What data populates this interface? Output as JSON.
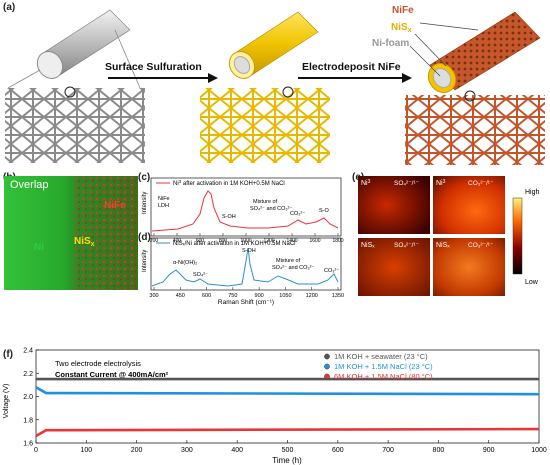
{
  "panel_a": {
    "label": "(a)",
    "step1": "Surface Sulfuration",
    "step2": "Electrodeposit NiFe",
    "layer_nife": "NiFe",
    "layer_nis": "NiS",
    "layer_nis_sub": "x",
    "layer_nifoam": "Ni-foam"
  },
  "panel_b": {
    "label": "(b)",
    "overlap": "Overlap",
    "nife": "NiFe",
    "nis": "NiS",
    "nis_sub": "x",
    "ni": "Ni"
  },
  "panel_c": {
    "label": "(c)",
    "legend": "Ni",
    "legend_sup": "3",
    "legend_rest": " after activation in 1M KOH+0.5M NaCl",
    "ylabel": "Intensity",
    "ann_nife": "NiFe",
    "ann_ldh": "LDH",
    "ann_soh": "S-OH",
    "ann_mix1": "Mixture of",
    "ann_mix2": "SO₄²⁻ and CO₃²⁻",
    "ann_co3": "CO₃²⁻",
    "ann_so": "S-O",
    "color": "#e8353a"
  },
  "panel_d": {
    "label": "(d)",
    "legend": "NiSₓ/Ni after activation in 1M KOH+0.5M NaCl",
    "ylabel": "Intensity",
    "xlabel": "Raman Shift (cm⁻¹)",
    "ann_nioh": "α-Ni(OH)₂",
    "ann_so4": "SO₄²⁻",
    "ann_soh": "S-OH",
    "ann_mix1": "Mixture of",
    "ann_mix2": "SO₄²⁻ and CO₃²⁻",
    "ann_co3": "CO₃²⁻",
    "color": "#2f8fd0",
    "xticks": [
      "300",
      "450",
      "600",
      "750",
      "900",
      "1050",
      "1200",
      "1350"
    ]
  },
  "panel_c_xticks": [
    "200",
    "400",
    "600",
    "800",
    "1000",
    "1200",
    "1400",
    "1600",
    "1800"
  ],
  "panel_e": {
    "label": "(e)",
    "maps": [
      {
        "species": "Ni",
        "sup": "3",
        "ion": "SO₄²⁻/¹⁻"
      },
      {
        "species": "Ni",
        "sup": "3",
        "ion": "CO₃²⁻/¹⁻"
      },
      {
        "species": "NiSₓ",
        "sup": "",
        "ion": "SO₄²⁻/¹⁻"
      },
      {
        "species": "NiSₓ",
        "sup": "",
        "ion": "CO₃²⁻/¹⁻"
      }
    ],
    "scale_high": "High",
    "scale_low": "Low"
  },
  "panel_f": {
    "label": "(f)",
    "note1": "Two electrode electrolysis",
    "note2": "Constant Current  @ 400mA/cm²",
    "ylabel": "Voltage (V)",
    "xlabel": "Time (h)"
  },
  "chart_data": [
    {
      "type": "line",
      "panel": "f",
      "xlabel": "Time (h)",
      "ylabel": "Voltage (V)",
      "xlim": [
        0,
        1000
      ],
      "ylim": [
        1.6,
        2.4
      ],
      "xticks": [
        "0",
        "100",
        "200",
        "300",
        "400",
        "500",
        "600",
        "700",
        "800",
        "900",
        "1000"
      ],
      "yticks": [
        "1.6",
        "1.8",
        "2.0",
        "2.2",
        "2.4"
      ],
      "legend_position": "top-right",
      "series": [
        {
          "name": "1M KOH + seawater (23 °C)",
          "color": "#555555",
          "x": [
            0,
            1000
          ],
          "values": [
            2.15,
            2.15
          ]
        },
        {
          "name": "1M KOH + 1.5M NaCl (23 °C)",
          "color": "#1f8fe0",
          "x": [
            0,
            20,
            40,
            1000
          ],
          "values": [
            2.08,
            2.03,
            2.03,
            2.02
          ]
        },
        {
          "name": "6M KOH + 1.5M NaCl (80 °C)",
          "color": "#e8353a",
          "x": [
            0,
            20,
            40,
            1000
          ],
          "values": [
            1.66,
            1.71,
            1.71,
            1.72
          ]
        }
      ]
    }
  ]
}
